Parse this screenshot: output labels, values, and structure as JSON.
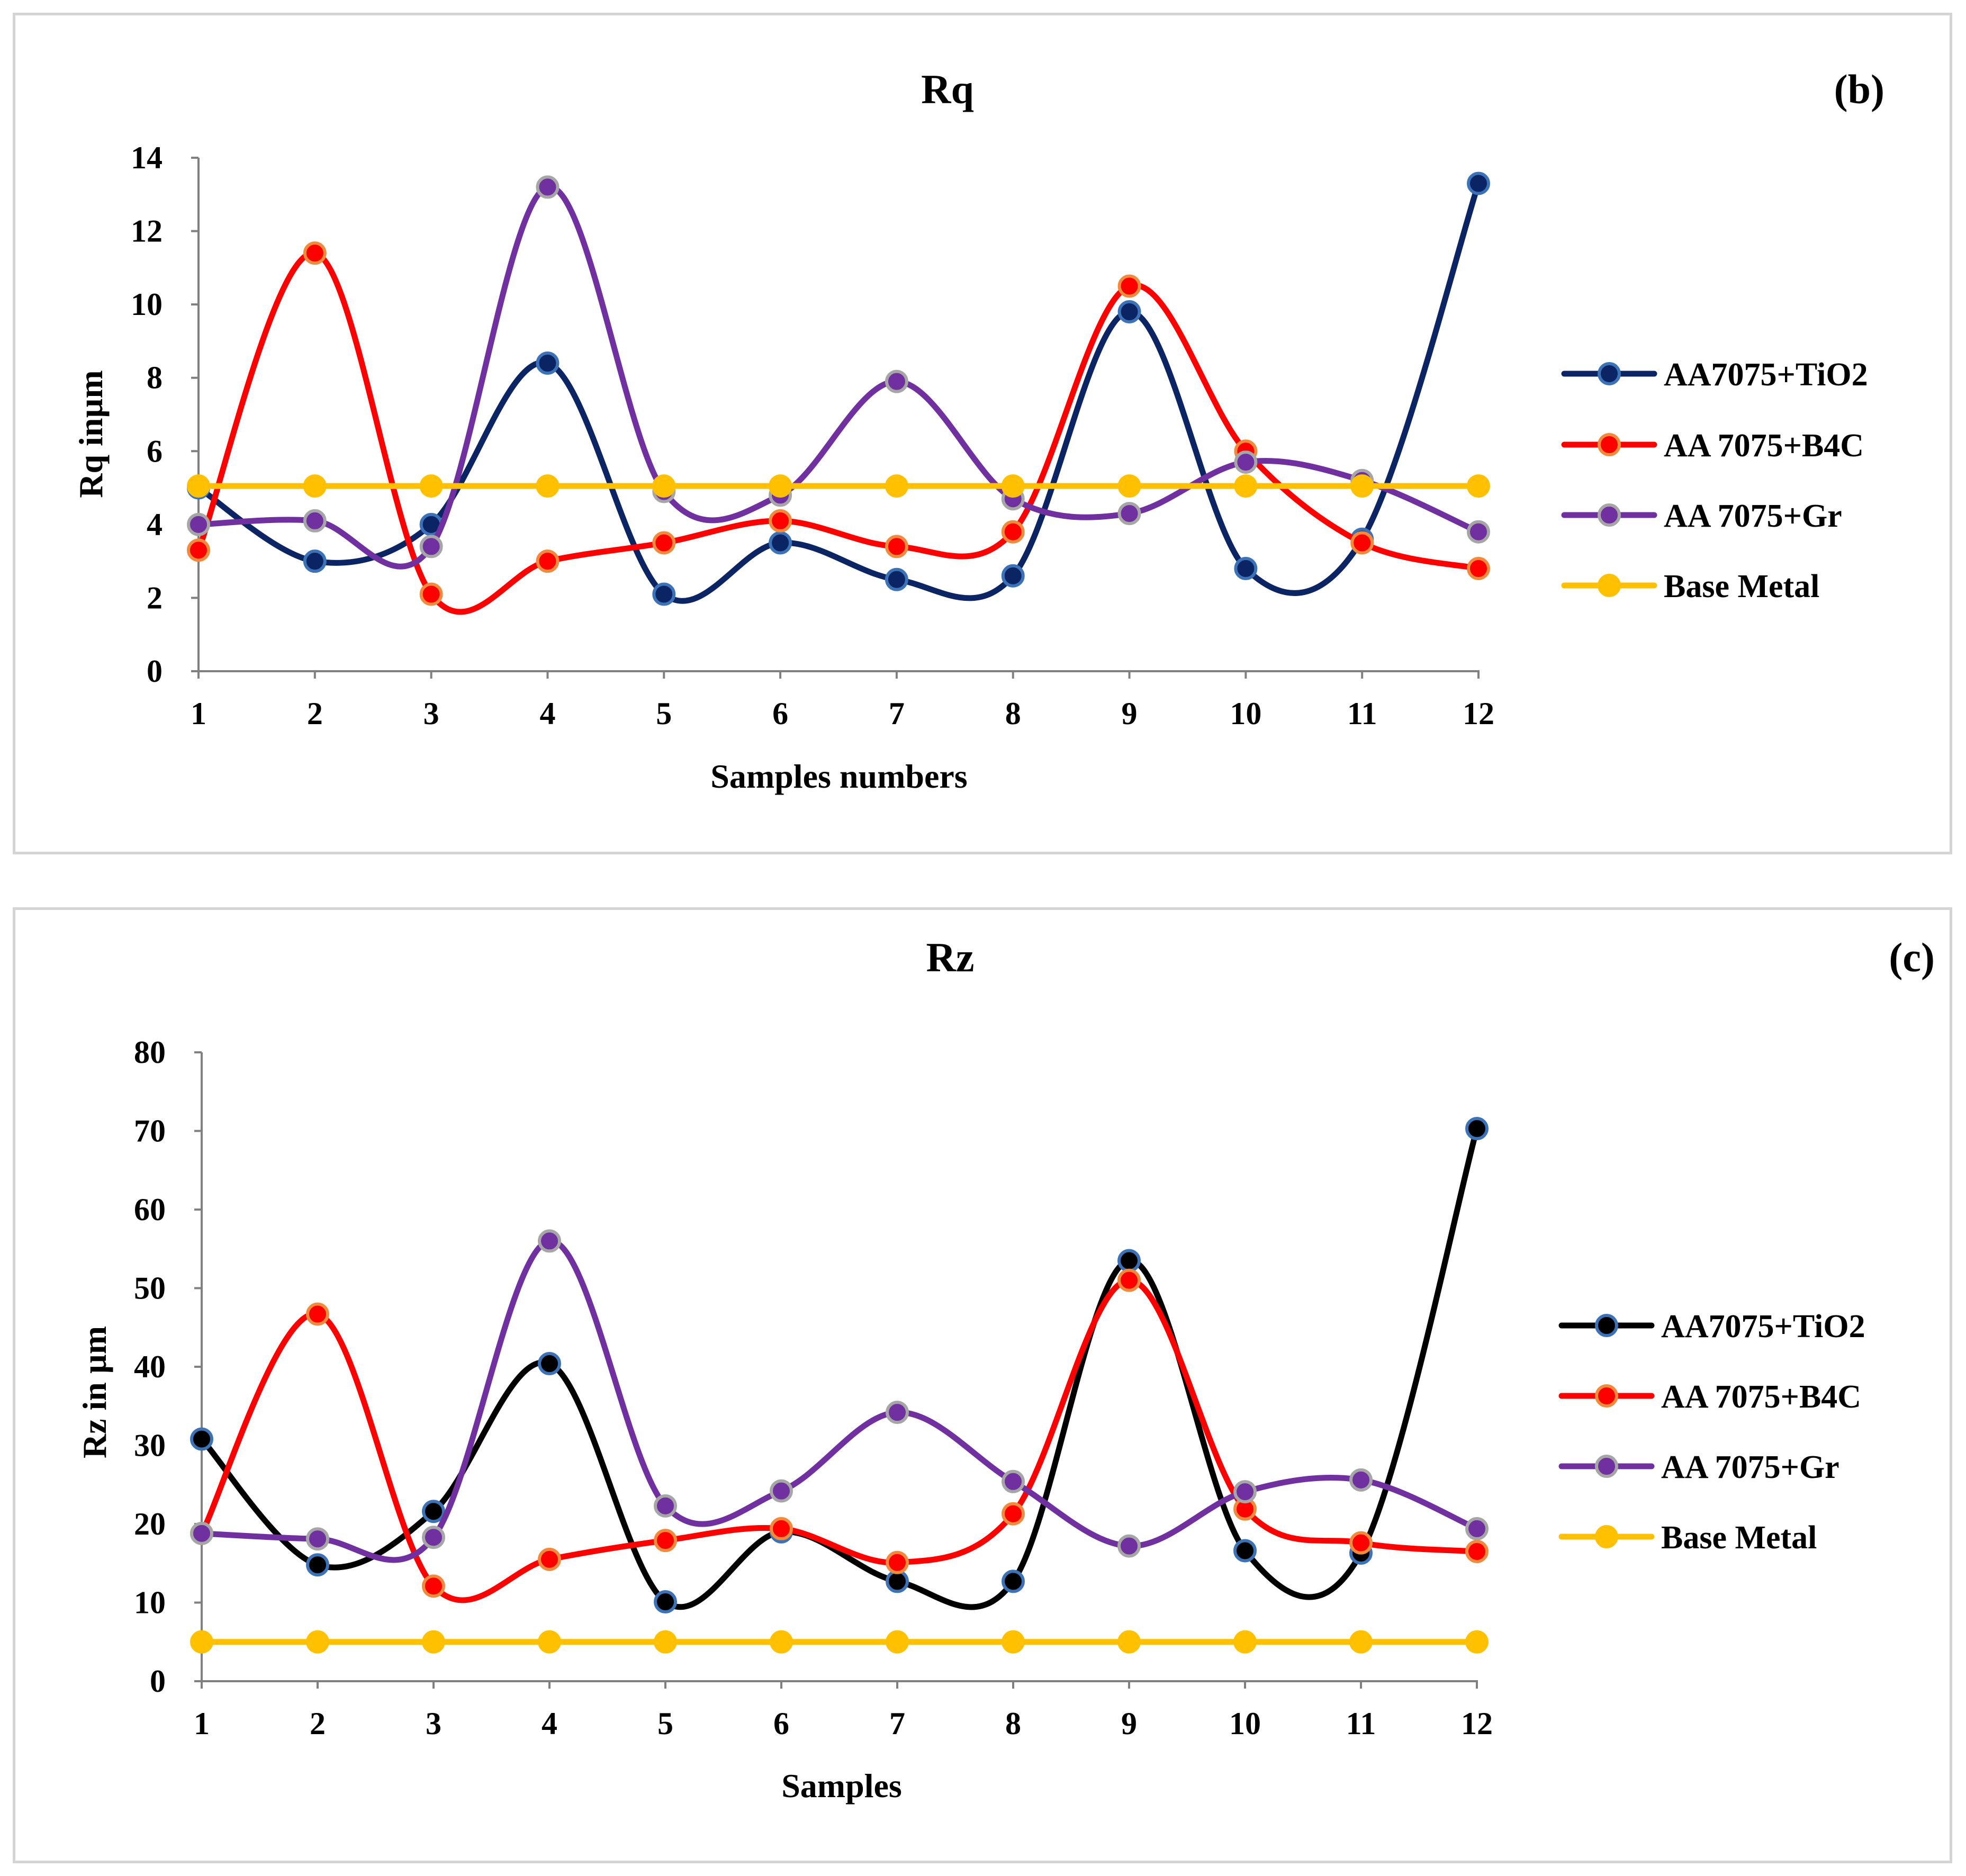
{
  "chart_data": [
    {
      "type": "line",
      "title": "Rq",
      "panel_label": "(b)",
      "xlabel": "Samples numbers",
      "ylabel": "Rq inµm",
      "x": [
        1,
        2,
        3,
        4,
        5,
        6,
        7,
        8,
        9,
        10,
        11,
        12
      ],
      "ylim": [
        0,
        14
      ],
      "yticks": [
        0,
        2,
        4,
        6,
        8,
        10,
        12,
        14
      ],
      "legend_position": "right",
      "series": [
        {
          "name": "AA7075+TiO2",
          "line_color": "#0b2463",
          "marker_fill": "#0b2463",
          "marker_edge": "#3c73b8",
          "values": [
            5.0,
            3.0,
            4.0,
            8.4,
            2.1,
            3.5,
            2.5,
            2.6,
            9.8,
            2.8,
            3.6,
            13.3
          ]
        },
        {
          "name": "AA 7075+B4C",
          "line_color": "#ff0000",
          "marker_fill": "#ff0000",
          "marker_edge": "#f08a3c",
          "values": [
            3.3,
            11.4,
            2.1,
            3.0,
            3.5,
            4.1,
            3.4,
            3.8,
            10.5,
            6.0,
            3.5,
            2.8
          ]
        },
        {
          "name": "AA 7075+Gr",
          "line_color": "#7030a0",
          "marker_fill": "#7030a0",
          "marker_edge": "#a6a6a6",
          "values": [
            4.0,
            4.1,
            3.4,
            13.2,
            4.9,
            4.8,
            7.9,
            4.7,
            4.3,
            5.7,
            5.2,
            3.8
          ]
        },
        {
          "name": "Base Metal",
          "line_color": "#ffc000",
          "marker_fill": "#ffc000",
          "marker_edge": "#ffc000",
          "values": [
            5.05,
            5.05,
            5.05,
            5.05,
            5.05,
            5.05,
            5.05,
            5.05,
            5.05,
            5.05,
            5.05,
            5.05
          ]
        }
      ]
    },
    {
      "type": "line",
      "title": "Rz",
      "panel_label": "(c)",
      "xlabel": "Samples",
      "ylabel": "Rz in µm",
      "x": [
        1,
        2,
        3,
        4,
        5,
        6,
        7,
        8,
        9,
        10,
        11,
        12
      ],
      "ylim": [
        0,
        80
      ],
      "yticks": [
        0,
        10,
        20,
        30,
        40,
        50,
        60,
        70,
        80
      ],
      "legend_position": "right",
      "series": [
        {
          "name": "AA7075+TiO2",
          "line_color": "#000000",
          "marker_fill": "#000000",
          "marker_edge": "#3c73b8",
          "values": [
            30.8,
            14.8,
            21.6,
            40.4,
            10.1,
            19.0,
            12.7,
            12.7,
            53.5,
            16.6,
            16.3,
            70.3
          ]
        },
        {
          "name": "AA 7075+B4C",
          "line_color": "#ff0000",
          "marker_fill": "#ff0000",
          "marker_edge": "#f08a3c",
          "values": [
            18.8,
            46.7,
            12.1,
            15.5,
            17.9,
            19.4,
            15.1,
            21.3,
            51.0,
            21.9,
            17.6,
            16.5
          ]
        },
        {
          "name": "AA 7075+Gr",
          "line_color": "#7030a0",
          "marker_fill": "#7030a0",
          "marker_edge": "#a6a6a6",
          "values": [
            18.8,
            18.1,
            18.3,
            56.0,
            22.3,
            24.2,
            34.2,
            25.4,
            17.2,
            24.1,
            25.6,
            19.4
          ]
        },
        {
          "name": "Base Metal",
          "line_color": "#ffc000",
          "marker_fill": "#ffc000",
          "marker_edge": "#ffc000",
          "values": [
            5.0,
            5.0,
            5.0,
            5.0,
            5.0,
            5.0,
            5.0,
            5.0,
            5.0,
            5.0,
            5.0,
            5.0
          ]
        }
      ]
    }
  ]
}
